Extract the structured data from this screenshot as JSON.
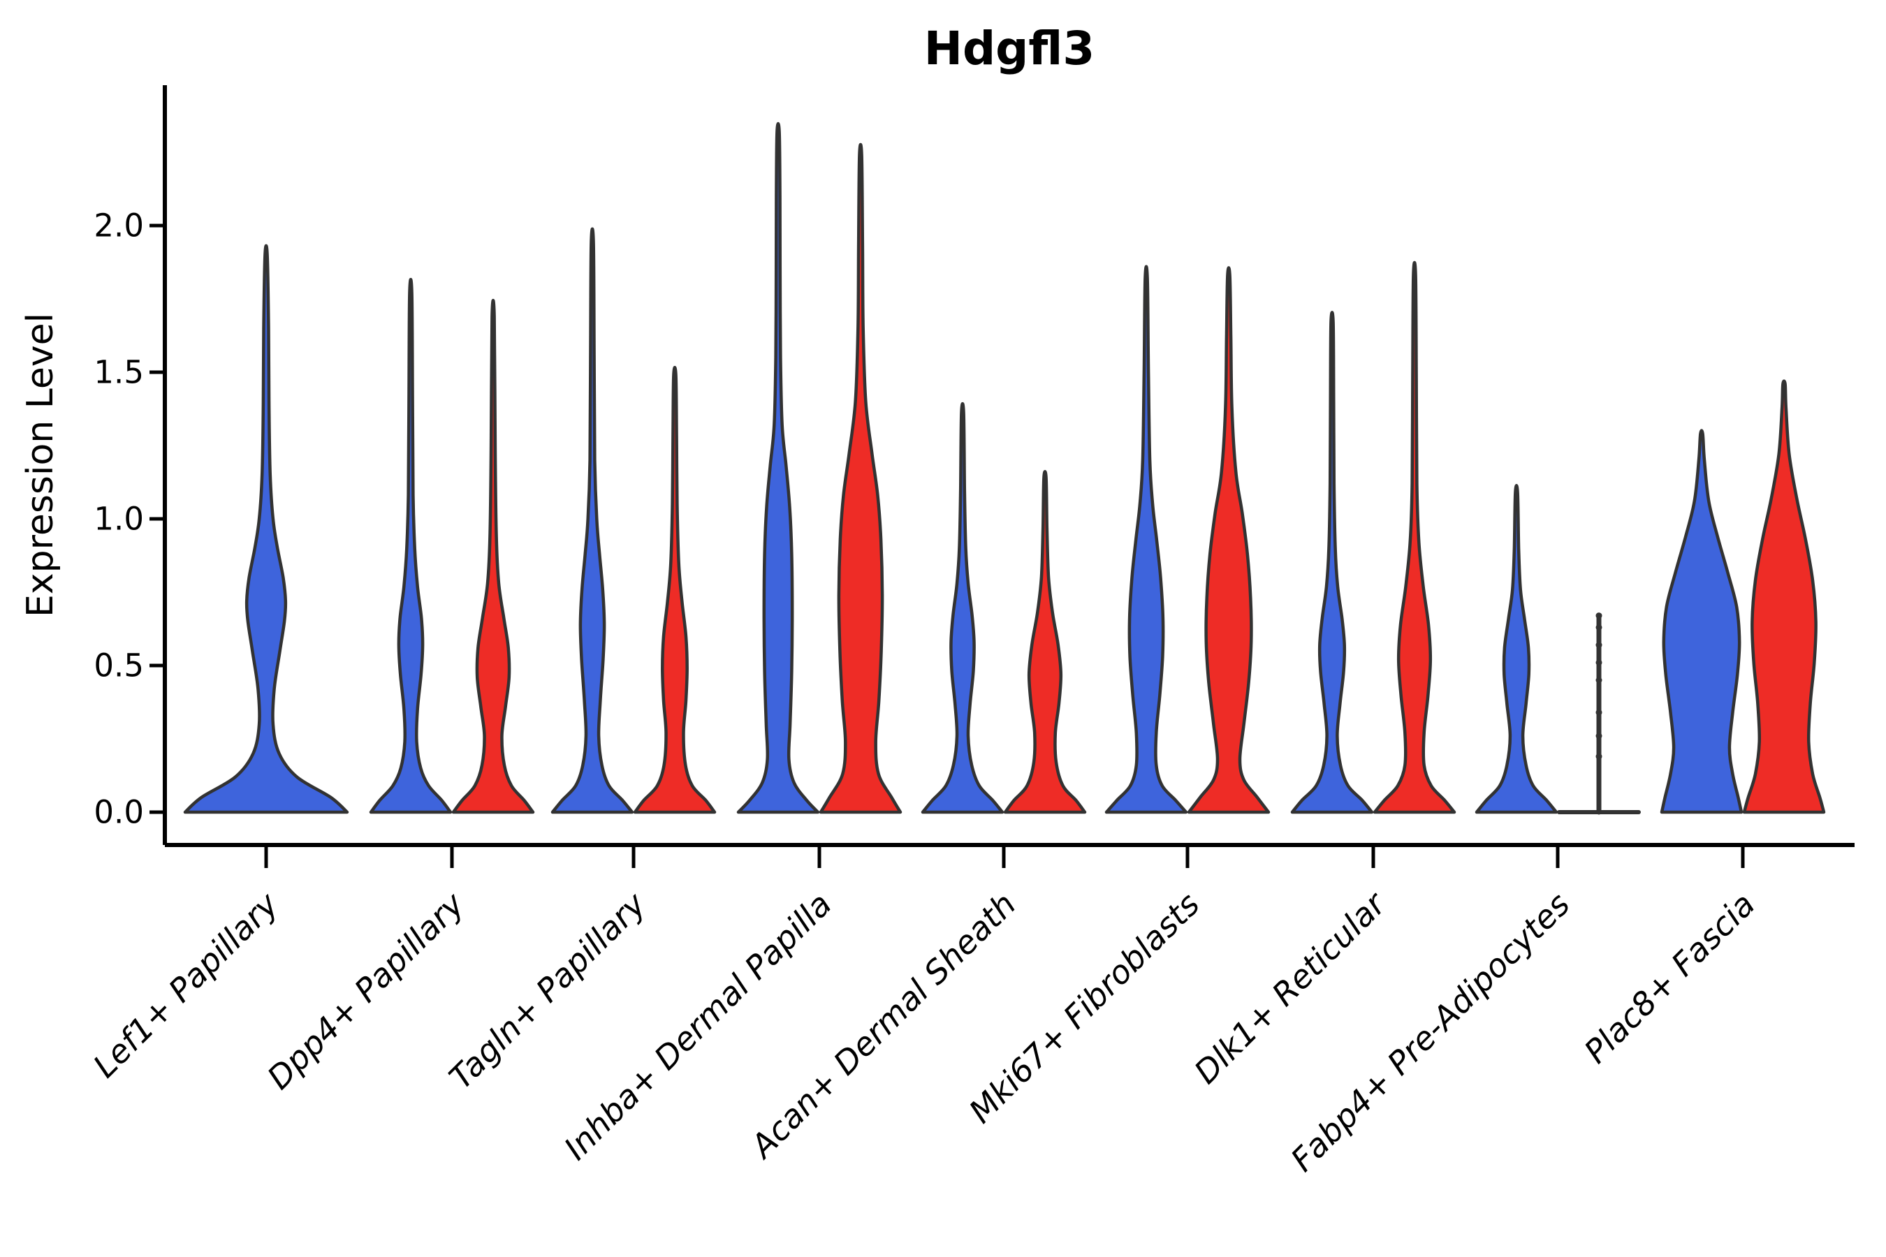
{
  "title": "Hdgfl3",
  "y_axis": {
    "label": "Expression Level",
    "tick_labels": [
      "0.0",
      "0.5",
      "1.0",
      "1.5",
      "2.0"
    ]
  },
  "chart_data": {
    "type": "violin",
    "title": "Hdgfl3",
    "xlabel": "",
    "ylabel": "Expression Level",
    "ylim": [
      -0.11,
      2.48
    ],
    "grid": false,
    "legend": "none",
    "yticks": [
      {
        "value": 0.0,
        "label": "0.0"
      },
      {
        "value": 0.5,
        "label": "0.5"
      },
      {
        "value": 1.0,
        "label": "1.0"
      },
      {
        "value": 1.5,
        "label": "1.5"
      },
      {
        "value": 2.0,
        "label": "2.0"
      }
    ],
    "categories": [
      "Lef1+ Papillary",
      "Dpp4+ Papillary",
      "Tagln+ Papillary",
      "Inhba+ Dermal Papilla",
      "Acan+ Dermal Sheath",
      "Mki67+ Fibroblasts",
      "Dlk1+ Reticular",
      "Fabp4+ Pre-Adipocytes",
      "Plac8+ Fascia"
    ],
    "colors": {
      "series_1": "#3E64DC",
      "series_2": "#EE2C26",
      "outline": "#323232",
      "axis": "#000000",
      "background": "#FFFFFF"
    },
    "series": [
      {
        "name": "series_1_blue",
        "color": "#3E64DC",
        "violins": [
          {
            "max": 1.9,
            "profile": [
              [
                0,
                1
              ],
              [
                0.05,
                0.8
              ],
              [
                0.12,
                0.38
              ],
              [
                0.2,
                0.16
              ],
              [
                0.3,
                0.085
              ],
              [
                0.42,
                0.1
              ],
              [
                0.55,
                0.17
              ],
              [
                0.65,
                0.225
              ],
              [
                0.72,
                0.24
              ],
              [
                0.8,
                0.21
              ],
              [
                0.9,
                0.14
              ],
              [
                1.0,
                0.085
              ],
              [
                1.15,
                0.05
              ],
              [
                1.4,
                0.035
              ],
              [
                1.65,
                0.03
              ],
              [
                1.9,
                0.012
              ]
            ]
          },
          {
            "max": 1.77,
            "profile": [
              [
                0,
                1
              ],
              [
                0.04,
                0.78
              ],
              [
                0.09,
                0.45
              ],
              [
                0.15,
                0.25
              ],
              [
                0.24,
                0.15
              ],
              [
                0.35,
                0.17
              ],
              [
                0.47,
                0.26
              ],
              [
                0.57,
                0.3
              ],
              [
                0.66,
                0.27
              ],
              [
                0.77,
                0.17
              ],
              [
                0.9,
                0.1
              ],
              [
                1.08,
                0.06
              ],
              [
                1.4,
                0.045
              ],
              [
                1.77,
                0.012
              ]
            ]
          },
          {
            "max": 1.94,
            "profile": [
              [
                0,
                1
              ],
              [
                0.04,
                0.76
              ],
              [
                0.09,
                0.42
              ],
              [
                0.16,
                0.24
              ],
              [
                0.26,
                0.16
              ],
              [
                0.38,
                0.2
              ],
              [
                0.52,
                0.27
              ],
              [
                0.64,
                0.3
              ],
              [
                0.76,
                0.26
              ],
              [
                0.88,
                0.18
              ],
              [
                1.0,
                0.11
              ],
              [
                1.2,
                0.06
              ],
              [
                1.55,
                0.045
              ],
              [
                1.94,
                0.012
              ]
            ]
          },
          {
            "max": 2.32,
            "profile": [
              [
                0,
                1
              ],
              [
                0.04,
                0.72
              ],
              [
                0.1,
                0.4
              ],
              [
                0.18,
                0.27
              ],
              [
                0.3,
                0.3
              ],
              [
                0.48,
                0.34
              ],
              [
                0.68,
                0.355
              ],
              [
                0.88,
                0.34
              ],
              [
                1.04,
                0.29
              ],
              [
                1.18,
                0.2
              ],
              [
                1.32,
                0.1
              ],
              [
                1.55,
                0.06
              ],
              [
                1.85,
                0.05
              ],
              [
                2.1,
                0.045
              ],
              [
                2.32,
                0.012
              ]
            ]
          },
          {
            "max": 1.36,
            "profile": [
              [
                0,
                1
              ],
              [
                0.04,
                0.76
              ],
              [
                0.09,
                0.42
              ],
              [
                0.16,
                0.23
              ],
              [
                0.26,
                0.14
              ],
              [
                0.37,
                0.19
              ],
              [
                0.48,
                0.27
              ],
              [
                0.58,
                0.29
              ],
              [
                0.67,
                0.24
              ],
              [
                0.78,
                0.14
              ],
              [
                0.9,
                0.08
              ],
              [
                1.1,
                0.05
              ],
              [
                1.36,
                0.012
              ]
            ]
          },
          {
            "max": 1.82,
            "profile": [
              [
                0,
                1
              ],
              [
                0.04,
                0.74
              ],
              [
                0.09,
                0.4
              ],
              [
                0.16,
                0.25
              ],
              [
                0.27,
                0.25
              ],
              [
                0.4,
                0.34
              ],
              [
                0.53,
                0.41
              ],
              [
                0.66,
                0.42
              ],
              [
                0.8,
                0.36
              ],
              [
                0.93,
                0.26
              ],
              [
                1.05,
                0.16
              ],
              [
                1.2,
                0.09
              ],
              [
                1.5,
                0.055
              ],
              [
                1.82,
                0.012
              ]
            ]
          },
          {
            "max": 1.67,
            "profile": [
              [
                0,
                1
              ],
              [
                0.04,
                0.76
              ],
              [
                0.09,
                0.4
              ],
              [
                0.16,
                0.21
              ],
              [
                0.26,
                0.13
              ],
              [
                0.37,
                0.2
              ],
              [
                0.48,
                0.29
              ],
              [
                0.57,
                0.31
              ],
              [
                0.66,
                0.25
              ],
              [
                0.77,
                0.14
              ],
              [
                0.9,
                0.08
              ],
              [
                1.12,
                0.05
              ],
              [
                1.4,
                0.04
              ],
              [
                1.67,
                0.012
              ]
            ]
          },
          {
            "max": 1.09,
            "profile": [
              [
                0,
                1
              ],
              [
                0.04,
                0.76
              ],
              [
                0.09,
                0.42
              ],
              [
                0.16,
                0.24
              ],
              [
                0.26,
                0.16
              ],
              [
                0.37,
                0.24
              ],
              [
                0.47,
                0.31
              ],
              [
                0.56,
                0.3
              ],
              [
                0.66,
                0.2
              ],
              [
                0.76,
                0.1
              ],
              [
                0.9,
                0.055
              ],
              [
                1.09,
                0.012
              ]
            ]
          },
          {
            "max": 1.29,
            "profile": [
              [
                0,
                1
              ],
              [
                0.05,
                0.92
              ],
              [
                0.13,
                0.78
              ],
              [
                0.22,
                0.7
              ],
              [
                0.34,
                0.78
              ],
              [
                0.47,
                0.9
              ],
              [
                0.58,
                0.95
              ],
              [
                0.7,
                0.88
              ],
              [
                0.82,
                0.65
              ],
              [
                0.94,
                0.4
              ],
              [
                1.06,
                0.18
              ],
              [
                1.2,
                0.07
              ],
              [
                1.29,
                0.015
              ]
            ]
          }
        ]
      },
      {
        "name": "series_2_red",
        "color": "#EE2C26",
        "violins": [
          null,
          {
            "max": 1.69,
            "profile": [
              [
                0,
                1
              ],
              [
                0.04,
                0.78
              ],
              [
                0.09,
                0.46
              ],
              [
                0.16,
                0.28
              ],
              [
                0.26,
                0.22
              ],
              [
                0.36,
                0.31
              ],
              [
                0.46,
                0.4
              ],
              [
                0.56,
                0.38
              ],
              [
                0.66,
                0.27
              ],
              [
                0.78,
                0.14
              ],
              [
                0.94,
                0.08
              ],
              [
                1.25,
                0.05
              ],
              [
                1.69,
                0.012
              ]
            ]
          },
          {
            "max": 1.49,
            "profile": [
              [
                0,
                1
              ],
              [
                0.04,
                0.78
              ],
              [
                0.09,
                0.44
              ],
              [
                0.16,
                0.27
              ],
              [
                0.27,
                0.22
              ],
              [
                0.38,
                0.28
              ],
              [
                0.49,
                0.31
              ],
              [
                0.6,
                0.28
              ],
              [
                0.72,
                0.18
              ],
              [
                0.85,
                0.1
              ],
              [
                1.05,
                0.06
              ],
              [
                1.28,
                0.045
              ],
              [
                1.49,
                0.012
              ]
            ]
          },
          {
            "max": 2.24,
            "profile": [
              [
                0,
                1
              ],
              [
                0.05,
                0.78
              ],
              [
                0.13,
                0.45
              ],
              [
                0.24,
                0.38
              ],
              [
                0.38,
                0.46
              ],
              [
                0.55,
                0.52
              ],
              [
                0.74,
                0.545
              ],
              [
                0.93,
                0.51
              ],
              [
                1.08,
                0.43
              ],
              [
                1.22,
                0.29
              ],
              [
                1.4,
                0.13
              ],
              [
                1.65,
                0.065
              ],
              [
                1.95,
                0.05
              ],
              [
                2.24,
                0.012
              ]
            ]
          },
          {
            "max": 1.14,
            "profile": [
              [
                0,
                1
              ],
              [
                0.04,
                0.78
              ],
              [
                0.09,
                0.45
              ],
              [
                0.17,
                0.28
              ],
              [
                0.27,
                0.26
              ],
              [
                0.37,
                0.35
              ],
              [
                0.47,
                0.4
              ],
              [
                0.57,
                0.33
              ],
              [
                0.68,
                0.19
              ],
              [
                0.8,
                0.09
              ],
              [
                0.97,
                0.05
              ],
              [
                1.14,
                0.012
              ]
            ]
          },
          {
            "max": 1.83,
            "profile": [
              [
                0,
                1
              ],
              [
                0.05,
                0.72
              ],
              [
                0.11,
                0.38
              ],
              [
                0.18,
                0.28
              ],
              [
                0.3,
                0.38
              ],
              [
                0.44,
                0.5
              ],
              [
                0.58,
                0.565
              ],
              [
                0.73,
                0.55
              ],
              [
                0.88,
                0.47
              ],
              [
                1.02,
                0.34
              ],
              [
                1.16,
                0.18
              ],
              [
                1.38,
                0.08
              ],
              [
                1.62,
                0.055
              ],
              [
                1.83,
                0.012
              ]
            ]
          },
          {
            "max": 1.83,
            "profile": [
              [
                0,
                1
              ],
              [
                0.04,
                0.76
              ],
              [
                0.09,
                0.42
              ],
              [
                0.16,
                0.24
              ],
              [
                0.27,
                0.24
              ],
              [
                0.4,
                0.34
              ],
              [
                0.52,
                0.4
              ],
              [
                0.64,
                0.35
              ],
              [
                0.77,
                0.22
              ],
              [
                0.92,
                0.11
              ],
              [
                1.12,
                0.06
              ],
              [
                1.48,
                0.045
              ],
              [
                1.83,
                0.012
              ]
            ]
          },
          {
            "degenerate": true,
            "max": 0.67,
            "points": [
              0.67,
              0.63,
              0.57,
              0.51,
              0.45,
              0.34,
              0.26,
              0.19
            ]
          },
          {
            "max": 1.46,
            "profile": [
              [
                0,
                1
              ],
              [
                0.05,
                0.9
              ],
              [
                0.13,
                0.72
              ],
              [
                0.24,
                0.62
              ],
              [
                0.37,
                0.66
              ],
              [
                0.51,
                0.76
              ],
              [
                0.65,
                0.8
              ],
              [
                0.79,
                0.72
              ],
              [
                0.93,
                0.54
              ],
              [
                1.07,
                0.32
              ],
              [
                1.22,
                0.13
              ],
              [
                1.38,
                0.05
              ],
              [
                1.46,
                0.015
              ]
            ]
          }
        ]
      }
    ]
  }
}
